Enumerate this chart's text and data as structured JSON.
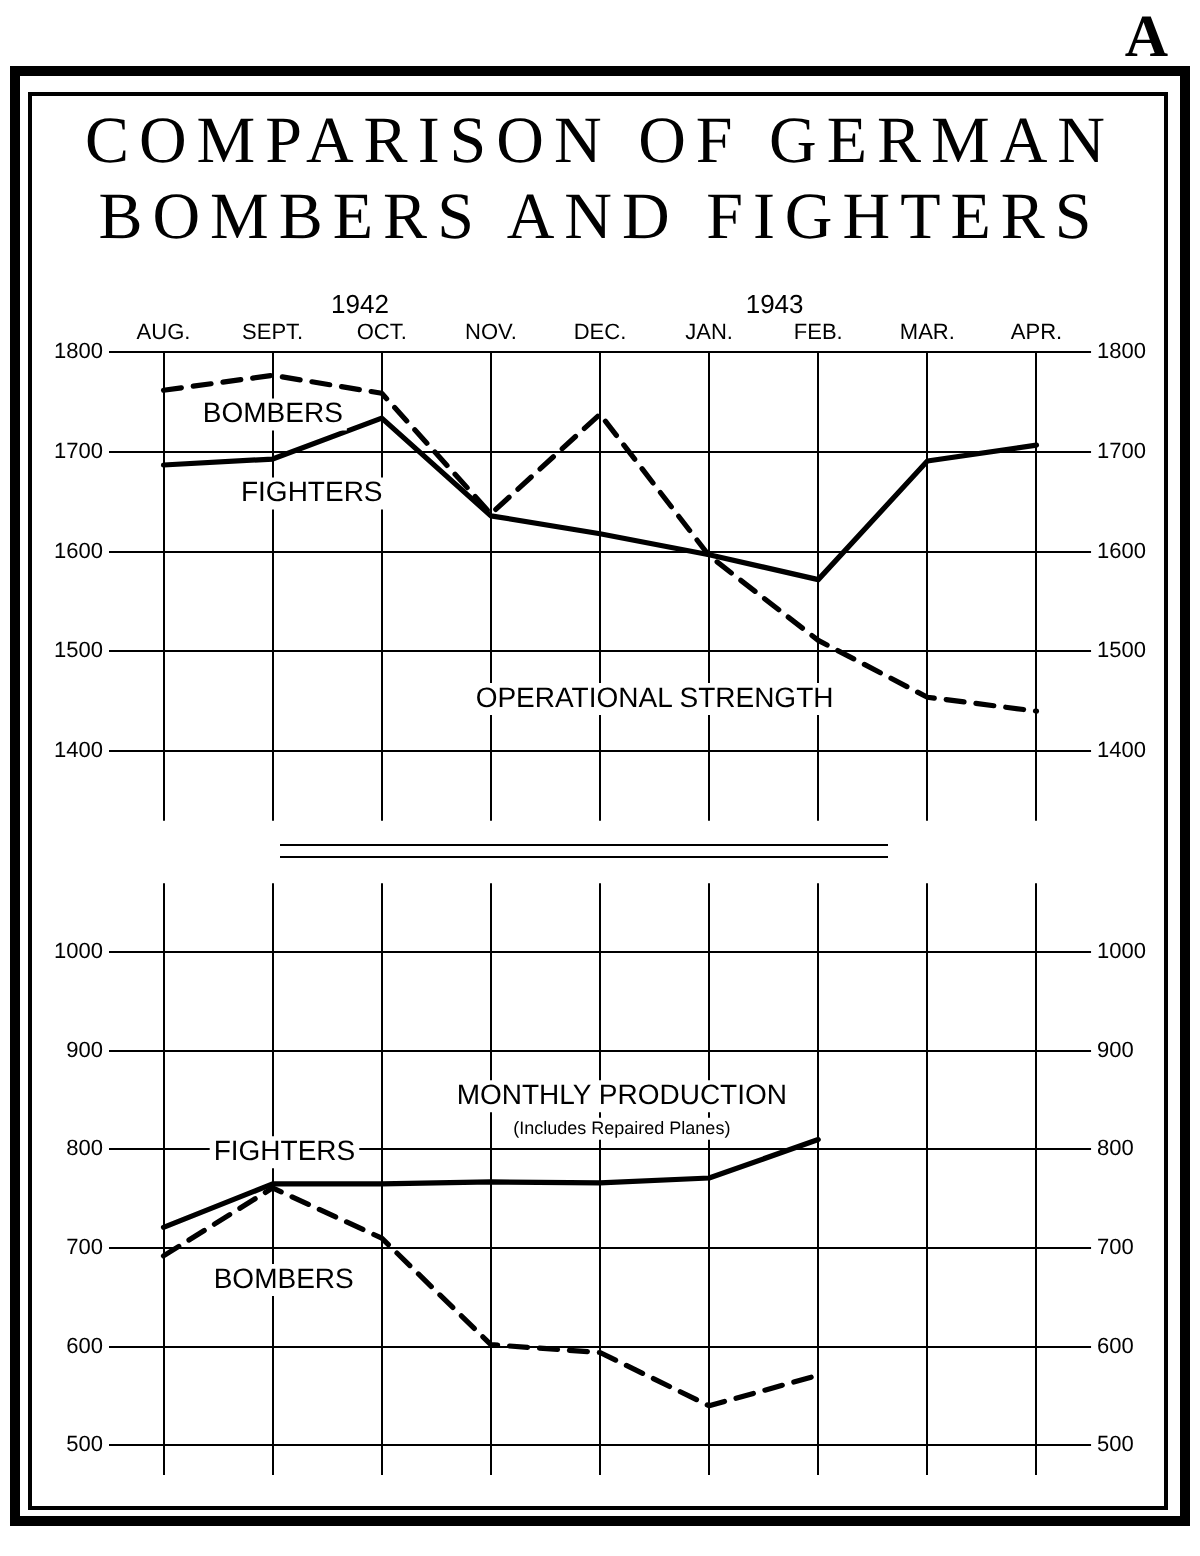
{
  "chart_data": [
    {
      "type": "line",
      "title": "COMPARISON OF GERMAN BOMBERS AND FIGHTERS",
      "categories": [
        "AUG.",
        "SEPT.",
        "OCT.",
        "NOV.",
        "DEC.",
        "JAN.",
        "FEB.",
        "MAR.",
        "APR."
      ],
      "series": [
        {
          "name": "BOMBERS",
          "color": "#000000",
          "line_style": "dashed",
          "values": [
            1762,
            1777,
            1759,
            1638,
            1738,
            1596,
            1511,
            1454,
            1440
          ]
        },
        {
          "name": "FIGHTERS",
          "color": "#000000",
          "line_style": "solid",
          "values": [
            1687,
            1693,
            1734,
            1636,
            1618,
            1597,
            1572,
            1691,
            1707
          ]
        }
      ],
      "ylim": [
        1330,
        1800
      ],
      "yticks": [
        1400,
        1500,
        1600,
        1700,
        1800
      ],
      "y2lim": [
        1330,
        1800
      ],
      "y2ticks": [
        1400,
        1500,
        1600,
        1700,
        1800
      ],
      "annotations": [
        "1942",
        "1943",
        "OPERATIONAL STRENGTH",
        "A"
      ],
      "grid": true,
      "legend": false,
      "marker": "none"
    },
    {
      "type": "line",
      "series": [
        {
          "name": "FIGHTERS",
          "color": "#000000",
          "line_style": "solid",
          "values": [
            721,
            765,
            765,
            767,
            766,
            771,
            810,
            null,
            null
          ]
        },
        {
          "name": "BOMBERS",
          "color": "#000000",
          "line_style": "dashed",
          "values": [
            692,
            761,
            710,
            602,
            594,
            540,
            571,
            null,
            null
          ]
        }
      ],
      "ylim": [
        470,
        1070
      ],
      "yticks": [
        500,
        600,
        700,
        800,
        900,
        1000
      ],
      "y2lim": [
        470,
        1070
      ],
      "y2ticks": [
        500,
        600,
        700,
        800,
        900,
        1000
      ],
      "annotations": [
        "MONTHLY PRODUCTION",
        "(Includes Repaired Planes)"
      ],
      "categories": [
        null,
        null,
        null,
        null,
        null,
        null,
        null,
        null,
        null
      ],
      "grid": true,
      "legend": false,
      "marker": "none",
      "tick_labels": "y"
    }
  ]
}
